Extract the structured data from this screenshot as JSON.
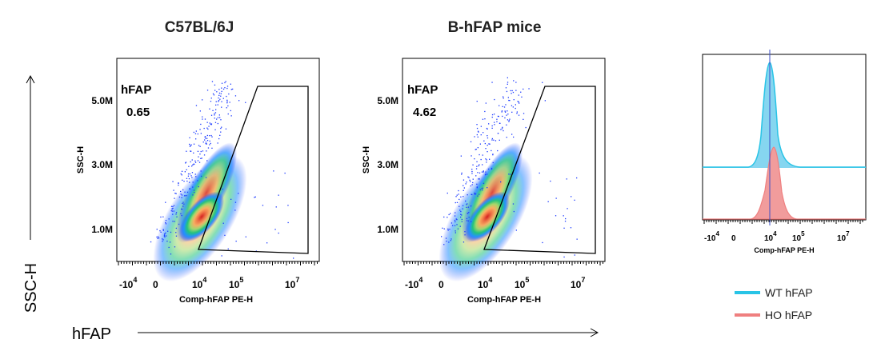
{
  "chart_data": [
    {
      "type": "scatter",
      "panel": "left",
      "title": "C57BL/6J",
      "xlabel": "Comp-hFAP PE-H",
      "ylabel": "SSC-H",
      "x_tick_labels": [
        {
          "base": "-10",
          "exp": "4"
        },
        {
          "base": "0",
          "exp": ""
        },
        {
          "base": "10",
          "exp": "4"
        },
        {
          "base": "10",
          "exp": "5"
        },
        {
          "base": "10",
          "exp": "7"
        }
      ],
      "y_tick_labels": [
        "5.0M",
        "3.0M",
        "1.0M"
      ],
      "gate": {
        "label": "hFAP",
        "value": "0.65"
      }
    },
    {
      "type": "scatter",
      "panel": "middle",
      "title": "B-hFAP mice",
      "xlabel": "Comp-hFAP PE-H",
      "ylabel": "SSC-H",
      "x_tick_labels": [
        {
          "base": "-10",
          "exp": "4"
        },
        {
          "base": "0",
          "exp": ""
        },
        {
          "base": "10",
          "exp": "4"
        },
        {
          "base": "10",
          "exp": "5"
        },
        {
          "base": "10",
          "exp": "7"
        }
      ],
      "y_tick_labels": [
        "5.0M",
        "3.0M",
        "1.0M"
      ],
      "gate": {
        "label": "hFAP",
        "value": "4.62"
      }
    },
    {
      "type": "area",
      "panel": "right",
      "title": "",
      "xlabel": "Comp-hFAP PE-H",
      "x_tick_labels": [
        {
          "base": "-10",
          "exp": "4"
        },
        {
          "base": "0",
          "exp": ""
        },
        {
          "base": "10",
          "exp": "4"
        },
        {
          "base": "10",
          "exp": "5"
        },
        {
          "base": "10",
          "exp": "7"
        }
      ],
      "series": [
        {
          "name": "WT hFAP",
          "color": "#29c4e6",
          "fill": "#86d6f0"
        },
        {
          "name": "HO hFAP",
          "color": "#ef7f7f",
          "fill": "#f19c9c"
        }
      ]
    }
  ],
  "outer_axes": {
    "y_label": "SSC-H",
    "x_label": "hFAP"
  }
}
